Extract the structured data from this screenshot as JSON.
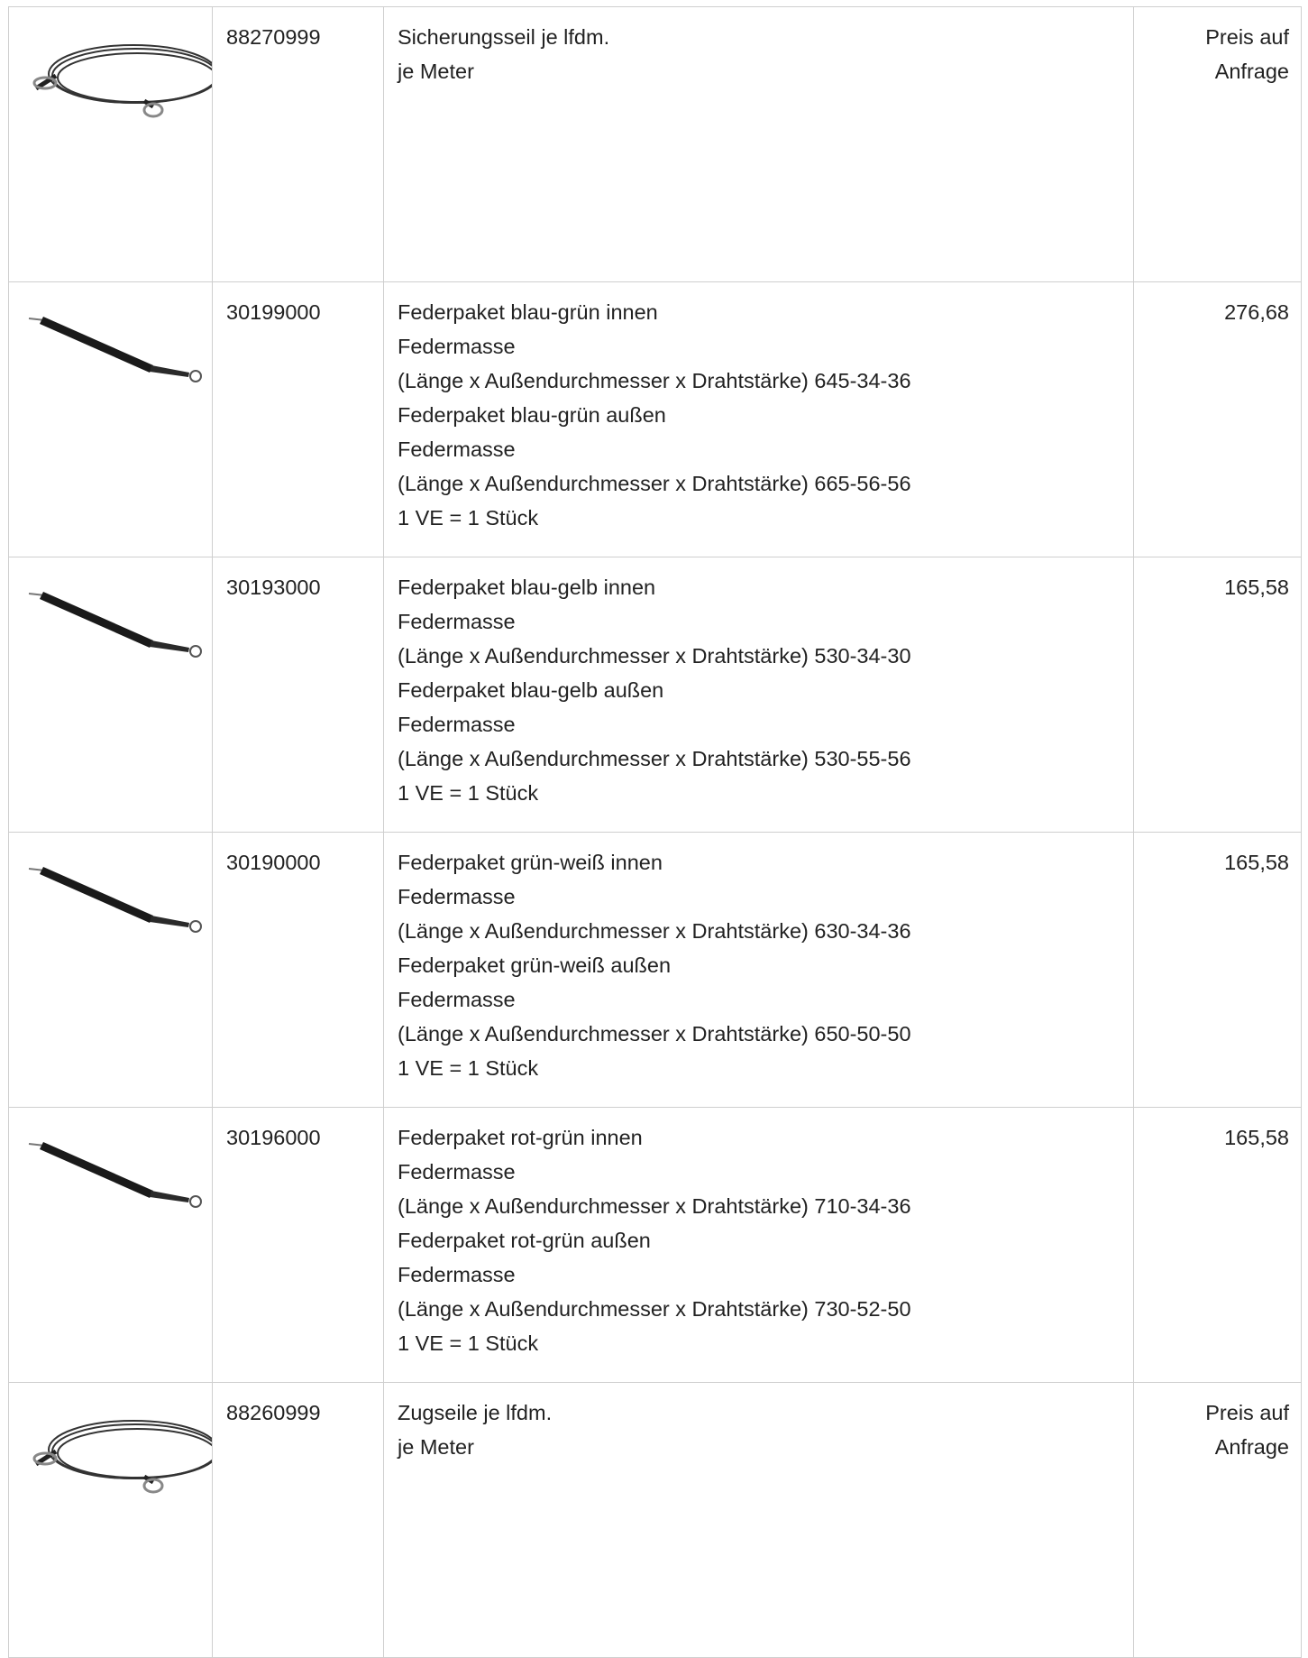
{
  "table": {
    "rows": [
      {
        "article": "88270999",
        "description": [
          "Sicherungsseil je lfdm.",
          "je Meter"
        ],
        "price": "Preis auf Anfrage"
      },
      {
        "article": "30199000",
        "description": [
          "Federpaket blau-grün innen",
          "Federmasse",
          "(Länge x Außendurchmesser x Drahtstärke) 645-34-36",
          "Federpaket blau-grün außen",
          "Federmasse",
          "(Länge x Außendurchmesser x Drahtstärke) 665-56-56",
          "1 VE = 1 Stück"
        ],
        "price": "276,68"
      },
      {
        "article": "30193000",
        "description": [
          "Federpaket blau-gelb innen",
          "Federmasse",
          "(Länge x Außendurchmesser x Drahtstärke) 530-34-30",
          "Federpaket blau-gelb außen",
          "Federmasse",
          "(Länge x Außendurchmesser x Drahtstärke) 530-55-56",
          "1 VE = 1 Stück"
        ],
        "price": "165,58"
      },
      {
        "article": "30190000",
        "description": [
          "Federpaket grün-weiß innen",
          "Federmasse",
          "(Länge x Außendurchmesser x Drahtstärke) 630-34-36",
          "Federpaket grün-weiß außen",
          "Federmasse",
          "(Länge x Außendurchmesser x Drahtstärke) 650-50-50",
          "1 VE = 1 Stück"
        ],
        "price": "165,58"
      },
      {
        "article": "30196000",
        "description": [
          "Federpaket rot-grün innen",
          "Federmasse",
          "(Länge x Außendurchmesser x Drahtstärke) 710-34-36",
          "Federpaket rot-grün außen",
          "Federmasse",
          "(Länge x Außendurchmesser x Drahtstärke) 730-52-50",
          "1 VE = 1 Stück"
        ],
        "price": "165,58"
      },
      {
        "article": "88260999",
        "description": [
          "Zugseile je lfdm.",
          "je Meter"
        ],
        "price": "Preis auf Anfrage"
      }
    ]
  }
}
